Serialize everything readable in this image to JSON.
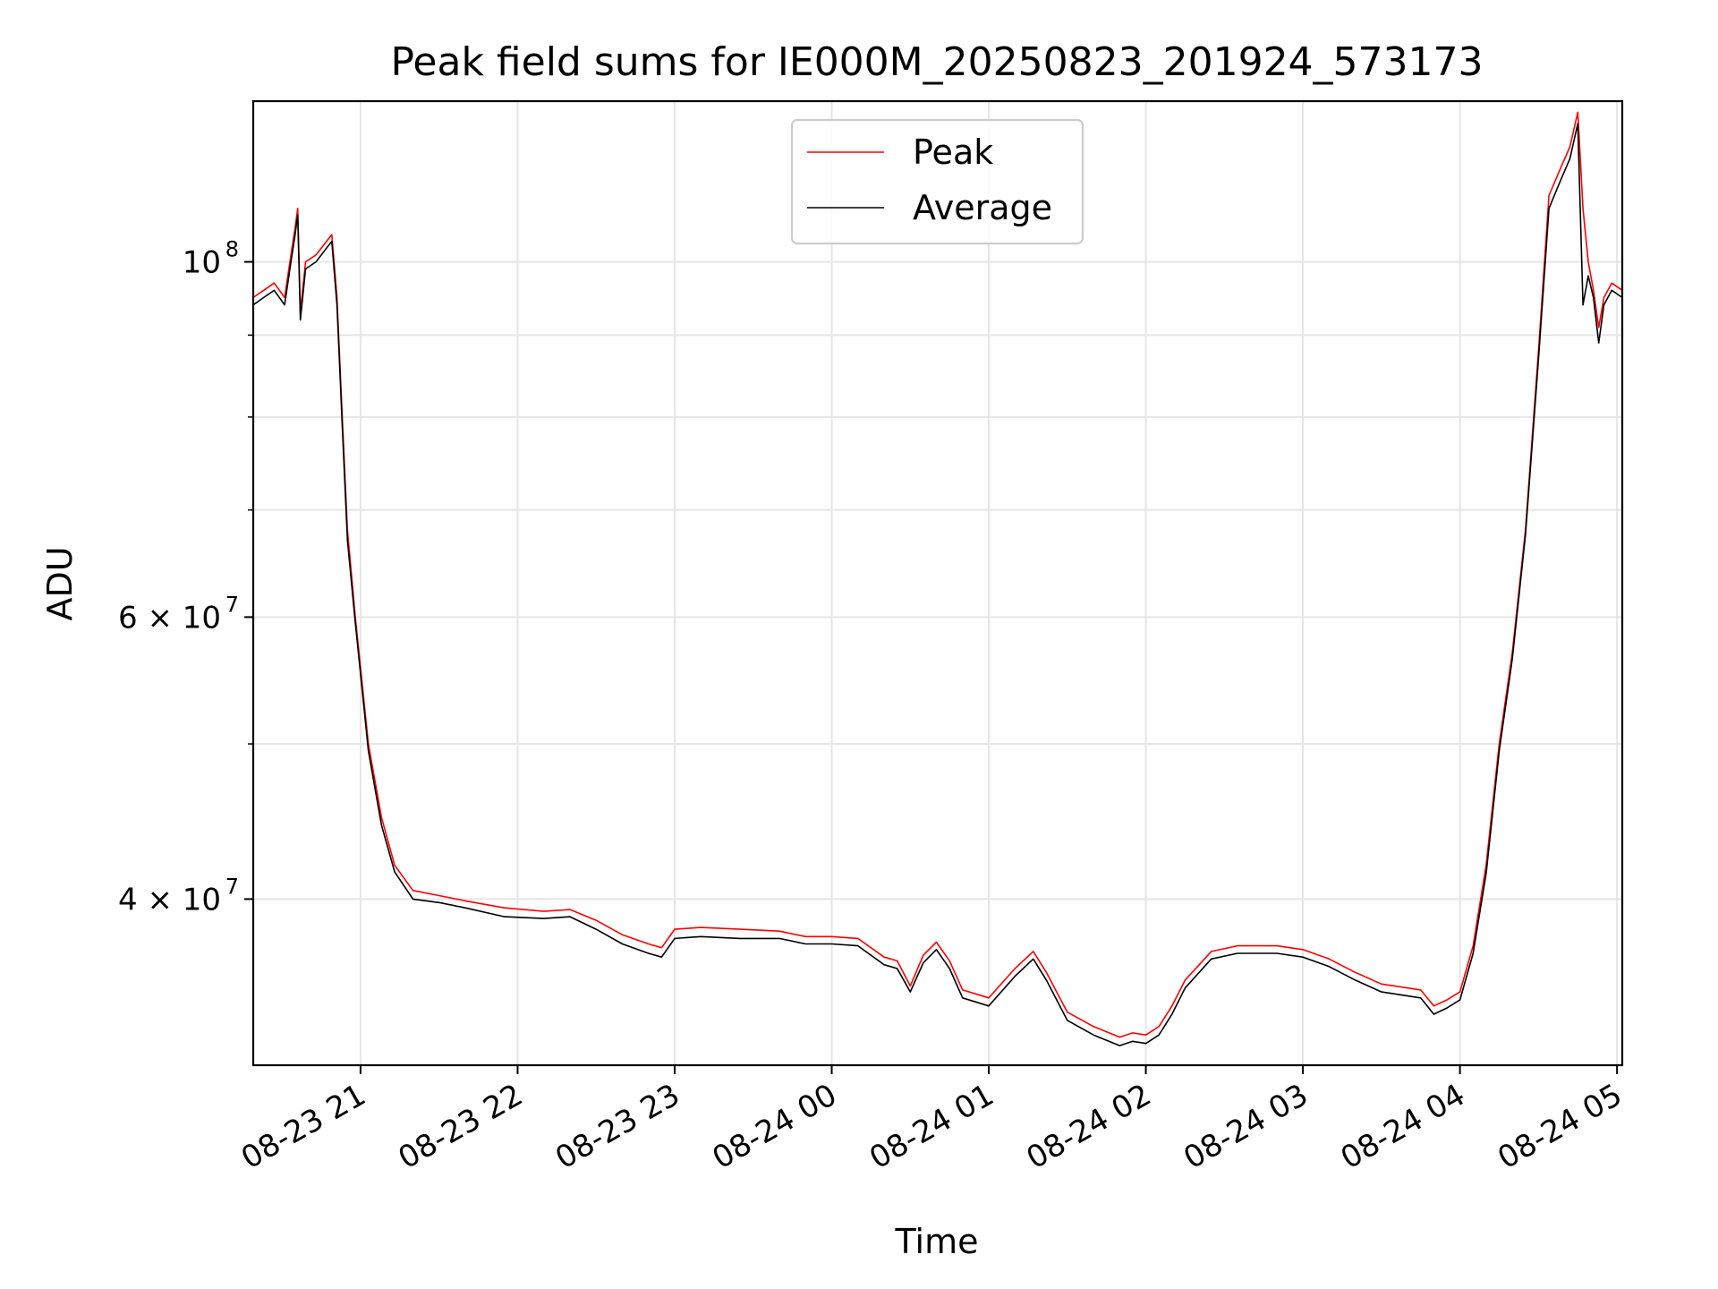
{
  "chart_data": {
    "type": "line",
    "title": "Peak field sums for IE000M_20250823_201924_573173",
    "xlabel": "Time",
    "ylabel": "ADU",
    "y_scale": "log",
    "ylim": [
      31500000,
      126000000
    ],
    "xlim": [
      "2025-08-23 20:19",
      "2025-08-24 05:02"
    ],
    "grid": true,
    "legend_position": "upper center",
    "x_ticks": [
      {
        "t": "2025-08-23 21:00",
        "label": "08-23 21"
      },
      {
        "t": "2025-08-23 22:00",
        "label": "08-23 22"
      },
      {
        "t": "2025-08-23 23:00",
        "label": "08-23 23"
      },
      {
        "t": "2025-08-24 00:00",
        "label": "08-24 00"
      },
      {
        "t": "2025-08-24 01:00",
        "label": "08-24 01"
      },
      {
        "t": "2025-08-24 02:00",
        "label": "08-24 02"
      },
      {
        "t": "2025-08-24 03:00",
        "label": "08-24 03"
      },
      {
        "t": "2025-08-24 04:00",
        "label": "08-24 04"
      },
      {
        "t": "2025-08-24 05:00",
        "label": "08-24 05"
      }
    ],
    "y_ticks": [
      {
        "value": 100000000,
        "base": "10",
        "exp": "8"
      },
      {
        "value": 60000000,
        "base": "6 × 10",
        "exp": "7"
      },
      {
        "value": 40000000,
        "base": "4 × 10",
        "exp": "7"
      }
    ],
    "y_minor_ticks": [
      90000000,
      80000000,
      70000000,
      50000000
    ],
    "series": [
      {
        "name": "Peak",
        "color": "#ff0000",
        "points": [
          [
            "2025-08-23 20:19",
            95000000
          ],
          [
            "2025-08-23 20:23",
            96000000
          ],
          [
            "2025-08-23 20:27",
            97000000
          ],
          [
            "2025-08-23 20:31",
            95000000
          ],
          [
            "2025-08-23 20:33",
            100000000
          ],
          [
            "2025-08-23 20:35",
            105000000
          ],
          [
            "2025-08-23 20:36",
            108000000
          ],
          [
            "2025-08-23 20:37",
            93000000
          ],
          [
            "2025-08-23 20:39",
            100000000
          ],
          [
            "2025-08-23 20:43",
            101000000
          ],
          [
            "2025-08-23 20:47",
            103000000
          ],
          [
            "2025-08-23 20:49",
            104000000
          ],
          [
            "2025-08-23 20:51",
            95000000
          ],
          [
            "2025-08-23 20:53",
            80000000
          ],
          [
            "2025-08-23 20:55",
            68000000
          ],
          [
            "2025-08-23 20:58",
            60000000
          ],
          [
            "2025-08-23 21:03",
            50000000
          ],
          [
            "2025-08-23 21:08",
            45000000
          ],
          [
            "2025-08-23 21:13",
            42000000
          ],
          [
            "2025-08-23 21:20",
            40500000
          ],
          [
            "2025-08-23 21:30",
            40200000
          ],
          [
            "2025-08-23 21:40",
            39900000
          ],
          [
            "2025-08-23 21:55",
            39500000
          ],
          [
            "2025-08-23 22:10",
            39300000
          ],
          [
            "2025-08-23 22:20",
            39400000
          ],
          [
            "2025-08-23 22:30",
            38800000
          ],
          [
            "2025-08-23 22:40",
            38000000
          ],
          [
            "2025-08-23 22:50",
            37500000
          ],
          [
            "2025-08-23 22:55",
            37300000
          ],
          [
            "2025-08-23 23:00",
            38300000
          ],
          [
            "2025-08-23 23:10",
            38400000
          ],
          [
            "2025-08-23 23:25",
            38300000
          ],
          [
            "2025-08-23 23:40",
            38200000
          ],
          [
            "2025-08-23 23:50",
            37900000
          ],
          [
            "2025-08-24 00:00",
            37900000
          ],
          [
            "2025-08-24 00:10",
            37800000
          ],
          [
            "2025-08-24 00:20",
            36800000
          ],
          [
            "2025-08-24 00:25",
            36600000
          ],
          [
            "2025-08-24 00:30",
            35300000
          ],
          [
            "2025-08-24 00:35",
            36900000
          ],
          [
            "2025-08-24 00:40",
            37600000
          ],
          [
            "2025-08-24 00:45",
            36600000
          ],
          [
            "2025-08-24 00:50",
            35100000
          ],
          [
            "2025-08-24 01:00",
            34700000
          ],
          [
            "2025-08-24 01:10",
            36200000
          ],
          [
            "2025-08-24 01:17",
            37100000
          ],
          [
            "2025-08-24 01:22",
            36000000
          ],
          [
            "2025-08-24 01:30",
            34000000
          ],
          [
            "2025-08-24 01:40",
            33300000
          ],
          [
            "2025-08-24 01:50",
            32800000
          ],
          [
            "2025-08-24 01:55",
            33000000
          ],
          [
            "2025-08-24 02:00",
            32900000
          ],
          [
            "2025-08-24 02:05",
            33300000
          ],
          [
            "2025-08-24 02:10",
            34300000
          ],
          [
            "2025-08-24 02:15",
            35600000
          ],
          [
            "2025-08-24 02:25",
            37100000
          ],
          [
            "2025-08-24 02:35",
            37400000
          ],
          [
            "2025-08-24 02:50",
            37400000
          ],
          [
            "2025-08-24 03:00",
            37200000
          ],
          [
            "2025-08-24 03:10",
            36700000
          ],
          [
            "2025-08-24 03:20",
            36000000
          ],
          [
            "2025-08-24 03:30",
            35400000
          ],
          [
            "2025-08-24 03:40",
            35200000
          ],
          [
            "2025-08-24 03:45",
            35100000
          ],
          [
            "2025-08-24 03:50",
            34300000
          ],
          [
            "2025-08-24 03:55",
            34600000
          ],
          [
            "2025-08-24 04:00",
            35000000
          ],
          [
            "2025-08-24 04:05",
            37400000
          ],
          [
            "2025-08-24 04:10",
            42000000
          ],
          [
            "2025-08-24 04:15",
            50000000
          ],
          [
            "2025-08-24 04:20",
            57000000
          ],
          [
            "2025-08-24 04:25",
            68000000
          ],
          [
            "2025-08-24 04:30",
            88000000
          ],
          [
            "2025-08-24 04:34",
            110000000
          ],
          [
            "2025-08-24 04:38",
            114000000
          ],
          [
            "2025-08-24 04:42",
            118000000
          ],
          [
            "2025-08-24 04:45",
            124000000
          ],
          [
            "2025-08-24 04:47",
            108000000
          ],
          [
            "2025-08-24 04:49",
            100000000
          ],
          [
            "2025-08-24 04:51",
            96000000
          ],
          [
            "2025-08-24 04:53",
            91000000
          ],
          [
            "2025-08-24 04:55",
            95000000
          ],
          [
            "2025-08-24 04:58",
            97000000
          ],
          [
            "2025-08-24 05:02",
            96000000
          ]
        ]
      },
      {
        "name": "Average",
        "color": "#000000",
        "points": [
          [
            "2025-08-23 20:19",
            94000000
          ],
          [
            "2025-08-23 20:23",
            95000000
          ],
          [
            "2025-08-23 20:27",
            96000000
          ],
          [
            "2025-08-23 20:31",
            94000000
          ],
          [
            "2025-08-23 20:33",
            99000000
          ],
          [
            "2025-08-23 20:35",
            104000000
          ],
          [
            "2025-08-23 20:36",
            107000000
          ],
          [
            "2025-08-23 20:37",
            92000000
          ],
          [
            "2025-08-23 20:39",
            99000000
          ],
          [
            "2025-08-23 20:43",
            100000000
          ],
          [
            "2025-08-23 20:47",
            102000000
          ],
          [
            "2025-08-23 20:49",
            103000000
          ],
          [
            "2025-08-23 20:51",
            94000000
          ],
          [
            "2025-08-23 20:53",
            79000000
          ],
          [
            "2025-08-23 20:55",
            67000000
          ],
          [
            "2025-08-23 20:58",
            59500000
          ],
          [
            "2025-08-23 21:03",
            49500000
          ],
          [
            "2025-08-23 21:08",
            44500000
          ],
          [
            "2025-08-23 21:13",
            41600000
          ],
          [
            "2025-08-23 21:20",
            40000000
          ],
          [
            "2025-08-23 21:30",
            39800000
          ],
          [
            "2025-08-23 21:40",
            39500000
          ],
          [
            "2025-08-23 21:55",
            39000000
          ],
          [
            "2025-08-23 22:10",
            38900000
          ],
          [
            "2025-08-23 22:20",
            39000000
          ],
          [
            "2025-08-23 22:30",
            38300000
          ],
          [
            "2025-08-23 22:40",
            37500000
          ],
          [
            "2025-08-23 22:50",
            37000000
          ],
          [
            "2025-08-23 22:55",
            36800000
          ],
          [
            "2025-08-23 23:00",
            37800000
          ],
          [
            "2025-08-23 23:10",
            37900000
          ],
          [
            "2025-08-23 23:25",
            37800000
          ],
          [
            "2025-08-23 23:40",
            37800000
          ],
          [
            "2025-08-23 23:50",
            37500000
          ],
          [
            "2025-08-24 00:00",
            37500000
          ],
          [
            "2025-08-24 00:10",
            37400000
          ],
          [
            "2025-08-24 00:20",
            36400000
          ],
          [
            "2025-08-24 00:25",
            36200000
          ],
          [
            "2025-08-24 00:30",
            35000000
          ],
          [
            "2025-08-24 00:35",
            36500000
          ],
          [
            "2025-08-24 00:40",
            37200000
          ],
          [
            "2025-08-24 00:45",
            36200000
          ],
          [
            "2025-08-24 00:50",
            34700000
          ],
          [
            "2025-08-24 01:00",
            34300000
          ],
          [
            "2025-08-24 01:10",
            35800000
          ],
          [
            "2025-08-24 01:17",
            36700000
          ],
          [
            "2025-08-24 01:22",
            35600000
          ],
          [
            "2025-08-24 01:30",
            33600000
          ],
          [
            "2025-08-24 01:40",
            32900000
          ],
          [
            "2025-08-24 01:50",
            32400000
          ],
          [
            "2025-08-24 01:55",
            32600000
          ],
          [
            "2025-08-24 02:00",
            32500000
          ],
          [
            "2025-08-24 02:05",
            32900000
          ],
          [
            "2025-08-24 02:10",
            33900000
          ],
          [
            "2025-08-24 02:15",
            35200000
          ],
          [
            "2025-08-24 02:25",
            36700000
          ],
          [
            "2025-08-24 02:35",
            37000000
          ],
          [
            "2025-08-24 02:50",
            37000000
          ],
          [
            "2025-08-24 03:00",
            36800000
          ],
          [
            "2025-08-24 03:10",
            36300000
          ],
          [
            "2025-08-24 03:20",
            35600000
          ],
          [
            "2025-08-24 03:30",
            35000000
          ],
          [
            "2025-08-24 03:40",
            34800000
          ],
          [
            "2025-08-24 03:45",
            34700000
          ],
          [
            "2025-08-24 03:50",
            33900000
          ],
          [
            "2025-08-24 03:55",
            34200000
          ],
          [
            "2025-08-24 04:00",
            34600000
          ],
          [
            "2025-08-24 04:05",
            37000000
          ],
          [
            "2025-08-24 04:10",
            41500000
          ],
          [
            "2025-08-24 04:15",
            49500000
          ],
          [
            "2025-08-24 04:20",
            56500000
          ],
          [
            "2025-08-24 04:25",
            67500000
          ],
          [
            "2025-08-24 04:30",
            87000000
          ],
          [
            "2025-08-24 04:34",
            108000000
          ],
          [
            "2025-08-24 04:38",
            112000000
          ],
          [
            "2025-08-24 04:42",
            116000000
          ],
          [
            "2025-08-24 04:45",
            122000000
          ],
          [
            "2025-08-24 04:47",
            94000000
          ],
          [
            "2025-08-24 04:49",
            98000000
          ],
          [
            "2025-08-24 04:51",
            95000000
          ],
          [
            "2025-08-24 04:53",
            89000000
          ],
          [
            "2025-08-24 04:55",
            94000000
          ],
          [
            "2025-08-24 04:58",
            96000000
          ],
          [
            "2025-08-24 05:02",
            95000000
          ]
        ]
      }
    ]
  }
}
